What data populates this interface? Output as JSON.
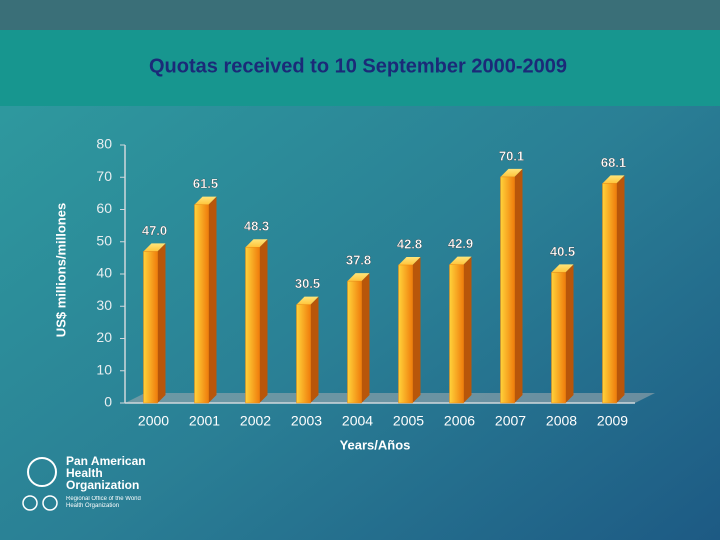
{
  "chart_data": {
    "type": "bar",
    "title": "Quotas received to 10 September 2000-2009",
    "y_label": "US$ millions/millones",
    "x_label": "Years/Años",
    "categories": [
      "2000",
      "2001",
      "2002",
      "2003",
      "2004",
      "2005",
      "2006",
      "2007",
      "2008",
      "2009"
    ],
    "values": [
      47.0,
      61.5,
      48.3,
      30.5,
      37.8,
      42.8,
      42.9,
      70.1,
      40.5,
      68.1
    ],
    "value_labels": [
      "47.0",
      "61.5",
      "48.3",
      "30.5",
      "37.8",
      "42.8",
      "42.9",
      "70.1",
      "40.5",
      "68.1"
    ],
    "color": "#f08a12",
    "ylim": [
      0,
      80
    ],
    "yticks": [
      0,
      10,
      20,
      30,
      40,
      50,
      60,
      70,
      80
    ]
  },
  "logo": {
    "name": "Pan American Health Organization",
    "subtitle": "Regional Office of the World Health Organization"
  }
}
